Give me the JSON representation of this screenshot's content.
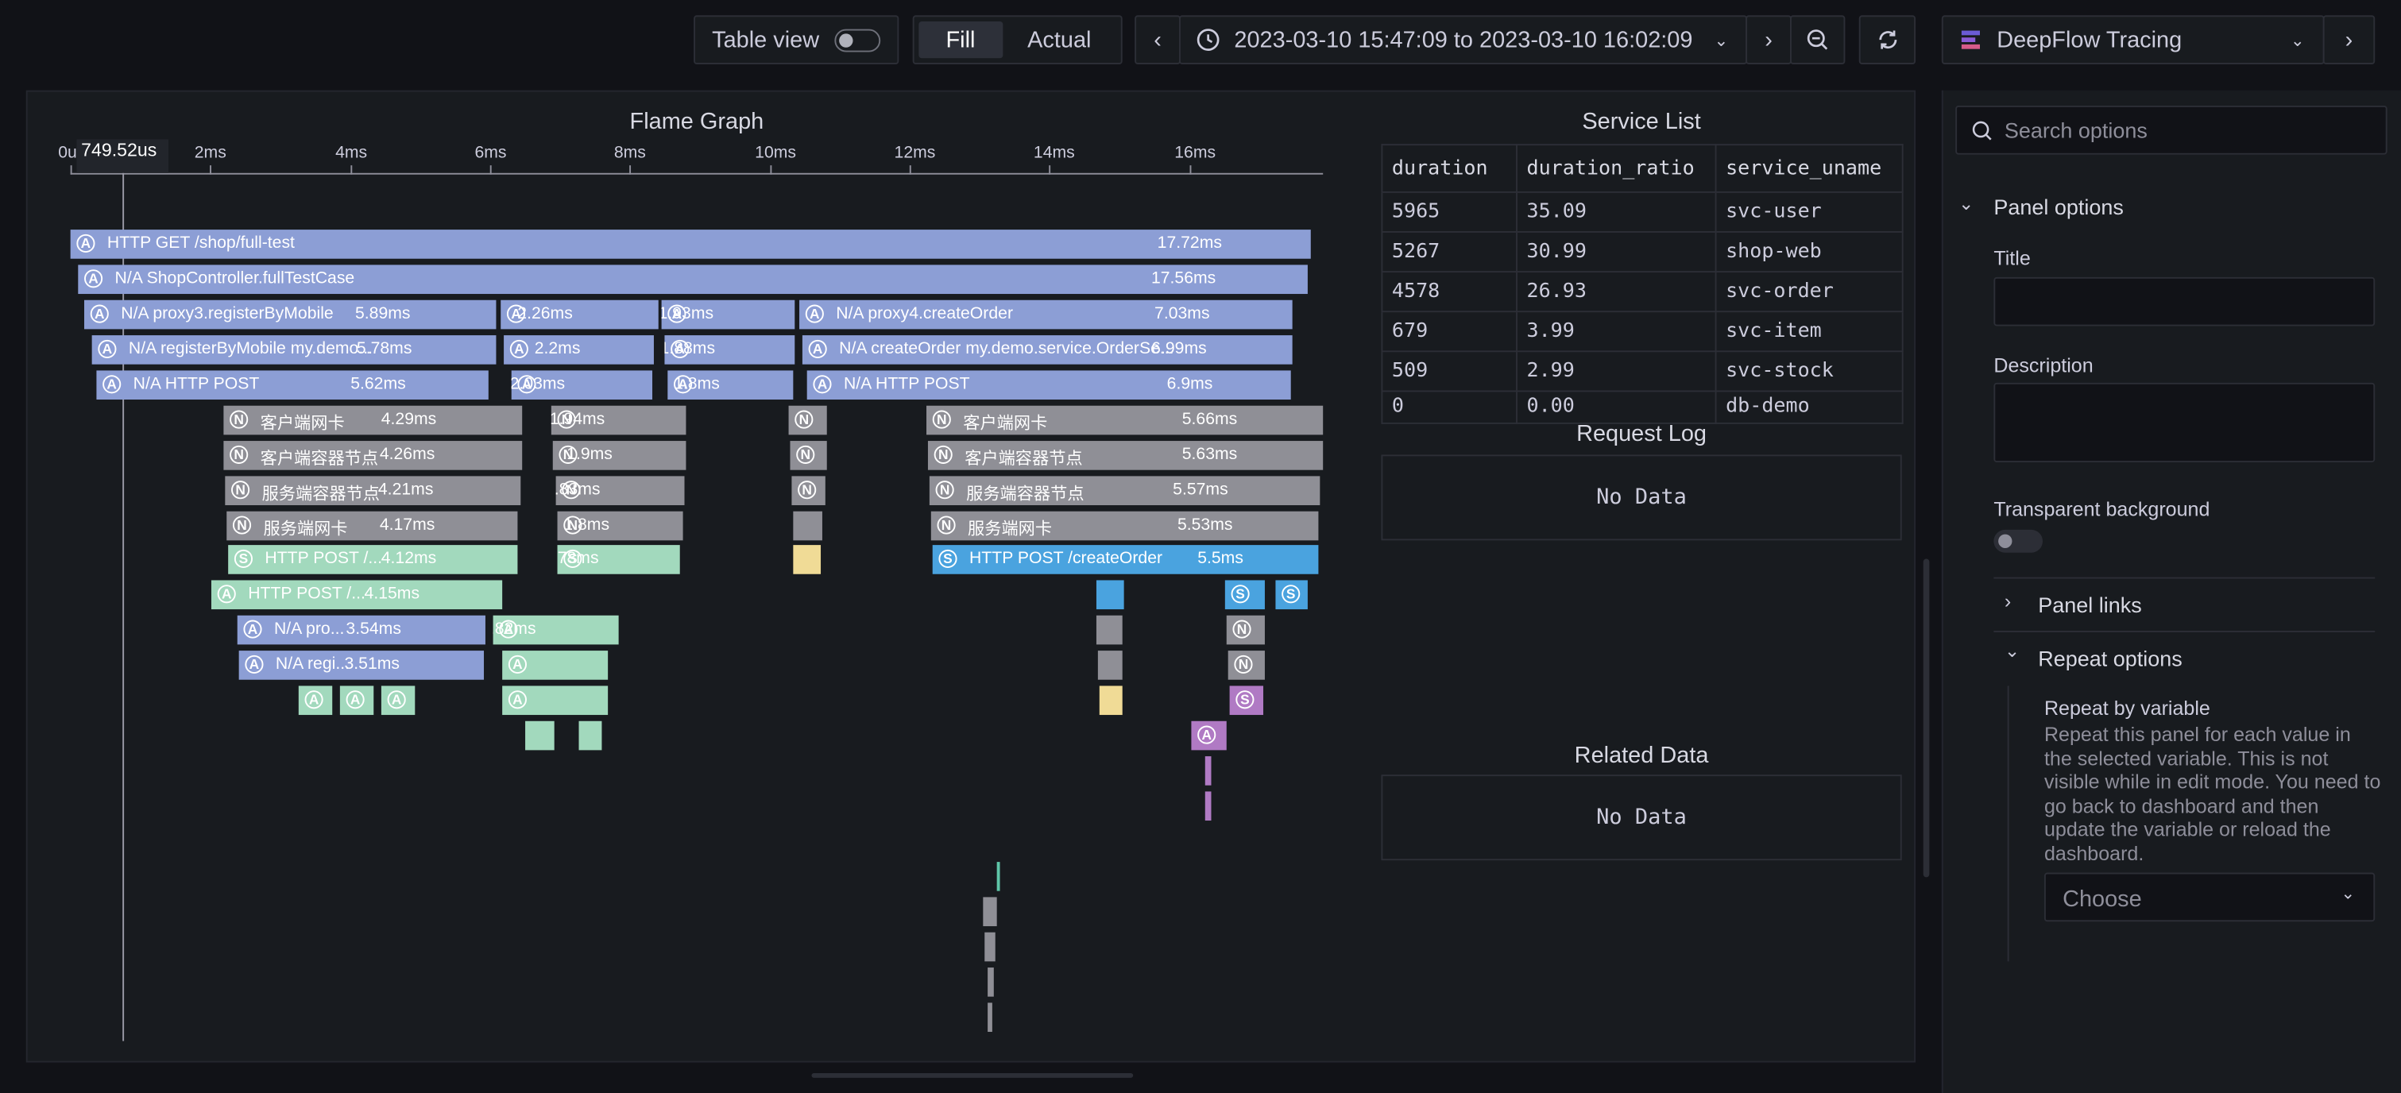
{
  "toolbar": {
    "table_view_label": "Table view",
    "fill_label": "Fill",
    "actual_label": "Actual",
    "time_range": "2023-03-10 15:47:09 to 2023-03-10 16:02:09",
    "datasource": "DeepFlow Tracing"
  },
  "flame": {
    "title": "Flame Graph",
    "cursor_label": "749.52us",
    "ticks": [
      "0us",
      "2ms",
      "4ms",
      "6ms",
      "8ms",
      "10ms",
      "12ms",
      "14ms",
      "16ms"
    ],
    "bars": [
      {
        "icon": "A",
        "name": "HTTP GET /shop/full-test",
        "dur": "17.72ms"
      },
      {
        "icon": "A",
        "name": "N/A ShopController.fullTestCase",
        "dur": "17.56ms"
      },
      {
        "icon": "A",
        "name": "N/A proxy3.registerByMobile",
        "dur": "5.89ms"
      },
      {
        "icon": "A",
        "name": "",
        "dur": "2.26ms"
      },
      {
        "icon": "A",
        "name": "",
        "dur": "1.93ms"
      },
      {
        "icon": "A",
        "name": "N/A proxy4.createOrder",
        "dur": "7.03ms"
      },
      {
        "icon": "A",
        "name": "N/A registerByMobile my.demo...",
        "dur": "5.78ms"
      },
      {
        "icon": "A",
        "name": "",
        "dur": "2.2ms"
      },
      {
        "icon": "A",
        "name": "",
        "dur": "1.88ms"
      },
      {
        "icon": "A",
        "name": "N/A createOrder my.demo.service.OrderSe...",
        "dur": "6.99ms"
      },
      {
        "icon": "A",
        "name": "N/A HTTP POST",
        "dur": "5.62ms"
      },
      {
        "icon": "A",
        "name": "",
        "dur": "2.03ms"
      },
      {
        "icon": "A",
        "name": "",
        "dur": "1.8ms"
      },
      {
        "icon": "A",
        "name": "N/A HTTP POST",
        "dur": "6.9ms"
      },
      {
        "icon": "N",
        "name": "客户端网卡",
        "dur": "4.29ms"
      },
      {
        "icon": "N",
        "name": "",
        "dur": "1.94ms"
      },
      {
        "icon": "N",
        "name": "",
        "dur": ""
      },
      {
        "icon": "N",
        "name": "客户端网卡",
        "dur": "5.66ms"
      },
      {
        "icon": "N",
        "name": "客户端容器节点",
        "dur": "4.26ms"
      },
      {
        "icon": "N",
        "name": "",
        "dur": "1.9ms"
      },
      {
        "icon": "N",
        "name": "",
        "dur": ""
      },
      {
        "icon": "N",
        "name": "客户端容器节点",
        "dur": "5.63ms"
      },
      {
        "icon": "N",
        "name": "服务端容器节点",
        "dur": "4.21ms"
      },
      {
        "icon": "N",
        "name": "",
        "dur": "1.83ms"
      },
      {
        "icon": "N",
        "name": "",
        "dur": ""
      },
      {
        "icon": "N",
        "name": "服务端容器节点",
        "dur": "5.57ms"
      },
      {
        "icon": "N",
        "name": "服务端网卡",
        "dur": "4.17ms"
      },
      {
        "icon": "N",
        "name": "",
        "dur": "1.8ms"
      },
      {
        "icon": "",
        "name": "",
        "dur": ""
      },
      {
        "icon": "N",
        "name": "服务端网卡",
        "dur": "5.53ms"
      },
      {
        "icon": "S",
        "name": "HTTP POST /...",
        "dur": "4.12ms"
      },
      {
        "icon": "S",
        "name": "",
        "dur": "1.78ms"
      },
      {
        "icon": "",
        "name": "",
        "dur": ""
      },
      {
        "icon": "S",
        "name": "HTTP POST /createOrder",
        "dur": "5.5ms"
      },
      {
        "icon": "A",
        "name": "HTTP POST /...",
        "dur": "4.15ms"
      },
      {
        "icon": "",
        "name": "",
        "dur": ""
      },
      {
        "icon": "S",
        "name": "",
        "dur": ""
      },
      {
        "icon": "S",
        "name": "",
        "dur": ""
      },
      {
        "icon": "A",
        "name": "N/A pro...",
        "dur": "3.54ms"
      },
      {
        "icon": "A",
        "name": "",
        "dur": "1.82ms"
      },
      {
        "icon": "",
        "name": "",
        "dur": ""
      },
      {
        "icon": "N",
        "name": "",
        "dur": ""
      },
      {
        "icon": "A",
        "name": "N/A regi...",
        "dur": "3.51ms"
      },
      {
        "icon": "A",
        "name": "",
        "dur": ""
      },
      {
        "icon": "",
        "name": "",
        "dur": ""
      },
      {
        "icon": "N",
        "name": "",
        "dur": ""
      },
      {
        "icon": "A",
        "name": "",
        "dur": ""
      },
      {
        "icon": "A",
        "name": "",
        "dur": ""
      },
      {
        "icon": "A",
        "name": "",
        "dur": ""
      },
      {
        "icon": "A",
        "name": "",
        "dur": ""
      },
      {
        "icon": "",
        "name": "",
        "dur": ""
      },
      {
        "icon": "S",
        "name": "",
        "dur": ""
      },
      {
        "icon": "",
        "name": "",
        "dur": ""
      },
      {
        "icon": "",
        "name": "",
        "dur": ""
      },
      {
        "icon": "A",
        "name": "",
        "dur": ""
      },
      {
        "icon": "",
        "name": "",
        "dur": ""
      },
      {
        "icon": "",
        "name": "",
        "dur": ""
      },
      {
        "icon": "",
        "name": "",
        "dur": ""
      },
      {
        "icon": "",
        "name": "",
        "dur": ""
      },
      {
        "icon": "",
        "name": "",
        "dur": ""
      },
      {
        "icon": "",
        "name": "",
        "dur": ""
      },
      {
        "icon": "",
        "name": "",
        "dur": ""
      }
    ]
  },
  "service_list": {
    "title": "Service List",
    "columns": [
      "duration",
      "duration_ratio",
      "service_uname"
    ],
    "rows": [
      [
        "5965",
        "35.09",
        "svc-user"
      ],
      [
        "5267",
        "30.99",
        "shop-web"
      ],
      [
        "4578",
        "26.93",
        "svc-order"
      ],
      [
        "679",
        "3.99",
        "svc-item"
      ],
      [
        "509",
        "2.99",
        "svc-stock"
      ],
      [
        "0",
        "0.00",
        "db-demo"
      ]
    ]
  },
  "request_log": {
    "title": "Request Log",
    "empty": "No Data"
  },
  "related_data": {
    "title": "Related Data",
    "empty": "No Data"
  },
  "options": {
    "search_placeholder": "Search options",
    "panel_options": "Panel options",
    "title_label": "Title",
    "description_label": "Description",
    "transparent_label": "Transparent background",
    "panel_links": "Panel links",
    "repeat_options": "Repeat options",
    "repeat_by_label": "Repeat by variable",
    "repeat_desc": "Repeat this panel for each value in the selected variable. This is not visible while in edit mode. You need to go back to dashboard and then update the variable or reload the dashboard.",
    "choose": "Choose"
  }
}
